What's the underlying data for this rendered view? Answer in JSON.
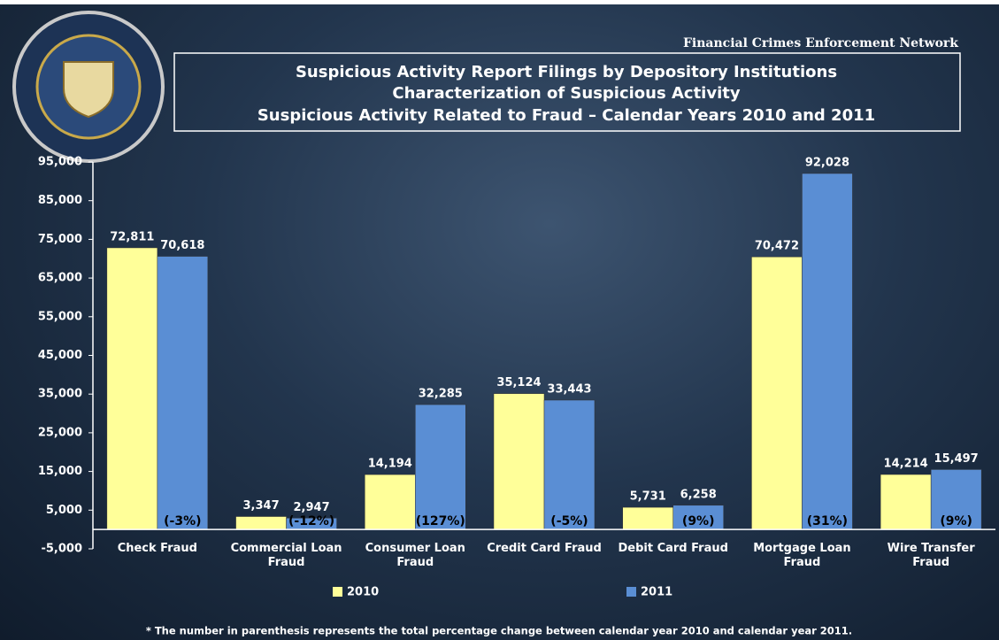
{
  "chart_data": {
    "type": "bar",
    "header": "Financial Crimes Enforcement Network",
    "title_lines": [
      "Suspicious Activity Report Filings by Depository Institutions",
      "Characterization of Suspicious Activity",
      "Suspicious Activity Related to Fraud – Calendar Years 2010 and 2011"
    ],
    "categories": [
      "Check Fraud",
      "Commercial Loan Fraud",
      "Consumer Loan Fraud",
      "Credit Card Fraud",
      "Debit Card Fraud",
      "Mortgage Loan Fraud",
      "Wire Transfer Fraud"
    ],
    "series": [
      {
        "name": "2010",
        "color": "#ffff99",
        "values": [
          72811,
          3347,
          14194,
          35124,
          5731,
          70472,
          14214
        ],
        "value_labels": [
          "72,811",
          "3,347",
          "14,194",
          "35,124",
          "5,731",
          "70,472",
          "14,214"
        ]
      },
      {
        "name": "2011",
        "color": "#5a8ed4",
        "values": [
          70618,
          2947,
          32285,
          33443,
          6258,
          92028,
          15497
        ],
        "value_labels": [
          "70,618",
          "2,947",
          "32,285",
          "33,443",
          "6,258",
          "92,028",
          "15,497"
        ]
      }
    ],
    "change_labels": [
      "(-3%)",
      "(-12%)",
      "(127%)",
      "(-5%)",
      "(9%)",
      "(31%)",
      "(9%)"
    ],
    "ylim": [
      -5000,
      95000
    ],
    "yticks": [
      {
        "value": -5000,
        "label": "-5,000"
      },
      {
        "value": 5000,
        "label": "5,000"
      },
      {
        "value": 15000,
        "label": "15,000"
      },
      {
        "value": 25000,
        "label": "25,000"
      },
      {
        "value": 35000,
        "label": "35,000"
      },
      {
        "value": 45000,
        "label": "45,000"
      },
      {
        "value": 55000,
        "label": "55,000"
      },
      {
        "value": 65000,
        "label": "65,000"
      },
      {
        "value": 75000,
        "label": "75,000"
      },
      {
        "value": 85000,
        "label": "85,000"
      },
      {
        "value": 95000,
        "label": "95,000"
      }
    ],
    "legend": "bottom",
    "footnote": "* The number in parenthesis represents the total percentage change between calendar year 2010 and calendar year 2011."
  }
}
